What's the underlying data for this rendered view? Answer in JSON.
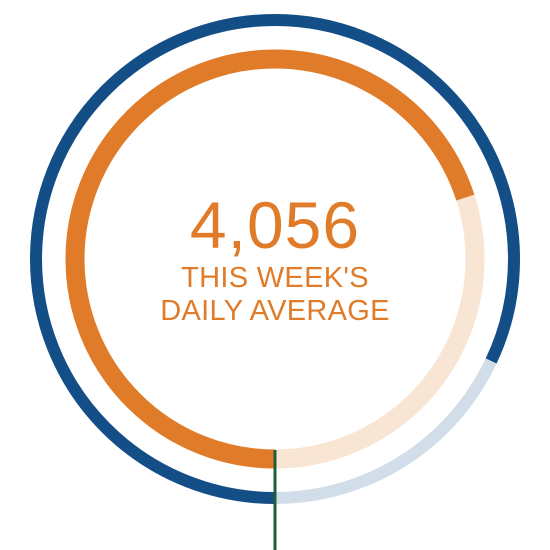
{
  "widget": {
    "value_text": "4,056",
    "caption_line1": "THIS WEEK'S",
    "caption_line2": "DAILY AVERAGE"
  },
  "rings": {
    "outer": {
      "progress_fraction": 0.82,
      "fill_color": "#134e86",
      "track_color": "#d1dde8"
    },
    "inner": {
      "progress_fraction": 0.7,
      "fill_color": "#e07b29",
      "track_color": "#f9e5d4"
    },
    "marker_color": "#1f5e3a"
  },
  "colors": {
    "text": "#e07b29",
    "background": "#ffffff"
  }
}
